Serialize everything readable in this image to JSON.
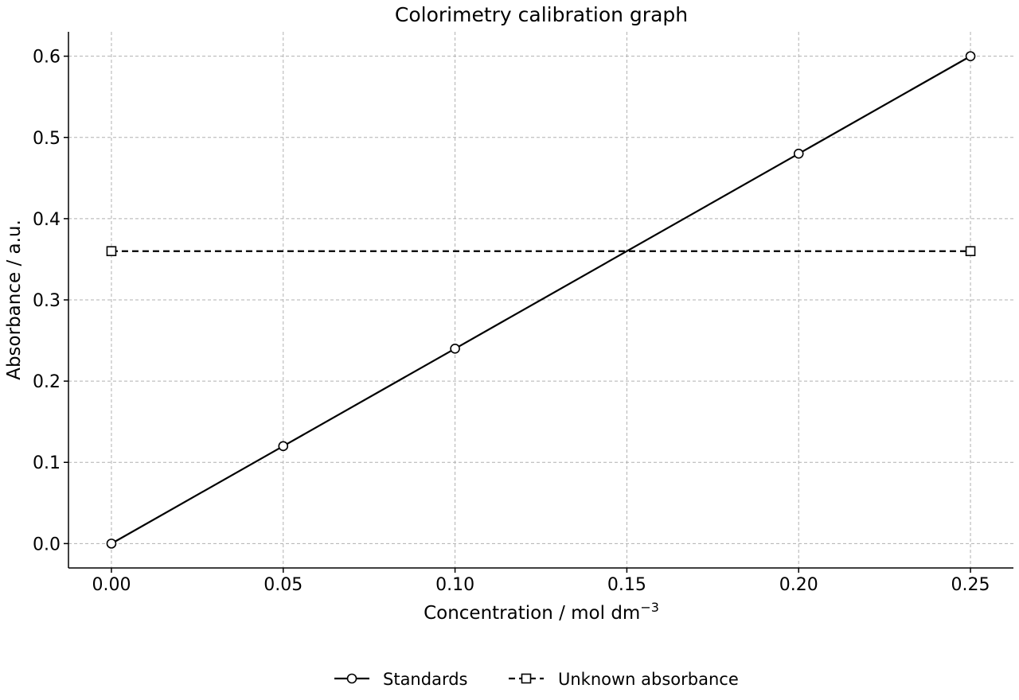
{
  "chart_data": {
    "type": "line",
    "title": "Colorimetry calibration graph",
    "xlabel": "Concentration / mol dm",
    "xlabel_superscript": "−3",
    "ylabel": "Absorbance / a.u.",
    "xlim": [
      -0.0125,
      0.2625
    ],
    "ylim": [
      -0.03,
      0.63
    ],
    "x_ticks": [
      "0.00",
      "0.05",
      "0.10",
      "0.15",
      "0.20",
      "0.25"
    ],
    "y_ticks": [
      "0.0",
      "0.1",
      "0.2",
      "0.3",
      "0.4",
      "0.5",
      "0.6"
    ],
    "grid": true,
    "legend_position": "bottom-center",
    "series": [
      {
        "name": "Standards",
        "style": "solid",
        "marker": "circle",
        "color": "#000000",
        "x": [
          0.0,
          0.05,
          0.1,
          0.2,
          0.25
        ],
        "y": [
          0.0,
          0.12,
          0.24,
          0.48,
          0.6
        ]
      },
      {
        "name": "Unknown absorbance",
        "style": "dashed",
        "marker": "square",
        "color": "#000000",
        "x": [
          0.0,
          0.25
        ],
        "y": [
          0.36,
          0.36
        ]
      }
    ]
  }
}
